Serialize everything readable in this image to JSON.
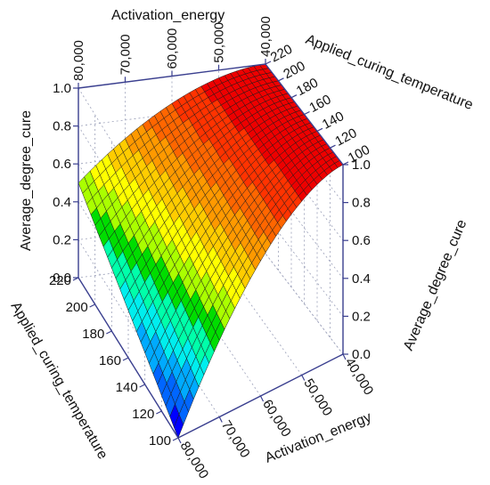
{
  "chart_data": {
    "type": "surface",
    "title": "",
    "z_axis_label": "Average_degree_cure",
    "x_axis_label": "Activation_energy",
    "y_axis_label": "Applied_curing_temperature",
    "x_range": [
      40000,
      80000
    ],
    "y_range": [
      100,
      220
    ],
    "z_range": [
      0.0,
      1.0
    ],
    "x_ticks": [
      "40,000",
      "50,000",
      "60,000",
      "70,000",
      "80,000"
    ],
    "y_ticks": [
      "100",
      "120",
      "140",
      "160",
      "180",
      "200",
      "220"
    ],
    "z_ticks": [
      "0.0",
      "0.2",
      "0.4",
      "0.6",
      "0.8",
      "1.0"
    ],
    "corner_values": [
      {
        "activation_energy": 40000,
        "applied_curing_temperature": 100,
        "average_degree_cure": 1.0
      },
      {
        "activation_energy": 40000,
        "applied_curing_temperature": 220,
        "average_degree_cure": 1.0
      },
      {
        "activation_energy": 80000,
        "applied_curing_temperature": 220,
        "average_degree_cure": 0.5
      },
      {
        "activation_energy": 80000,
        "applied_curing_temperature": 100,
        "average_degree_cure": 0.0
      }
    ],
    "color_bands": [
      "#0000ff",
      "#0066ff",
      "#00aaff",
      "#00eeee",
      "#00ffaa",
      "#00dd00",
      "#aaff00",
      "#ffff00",
      "#ffcc00",
      "#ff9900",
      "#ff6600",
      "#ff3300",
      "#ee0000"
    ],
    "grid": true
  }
}
